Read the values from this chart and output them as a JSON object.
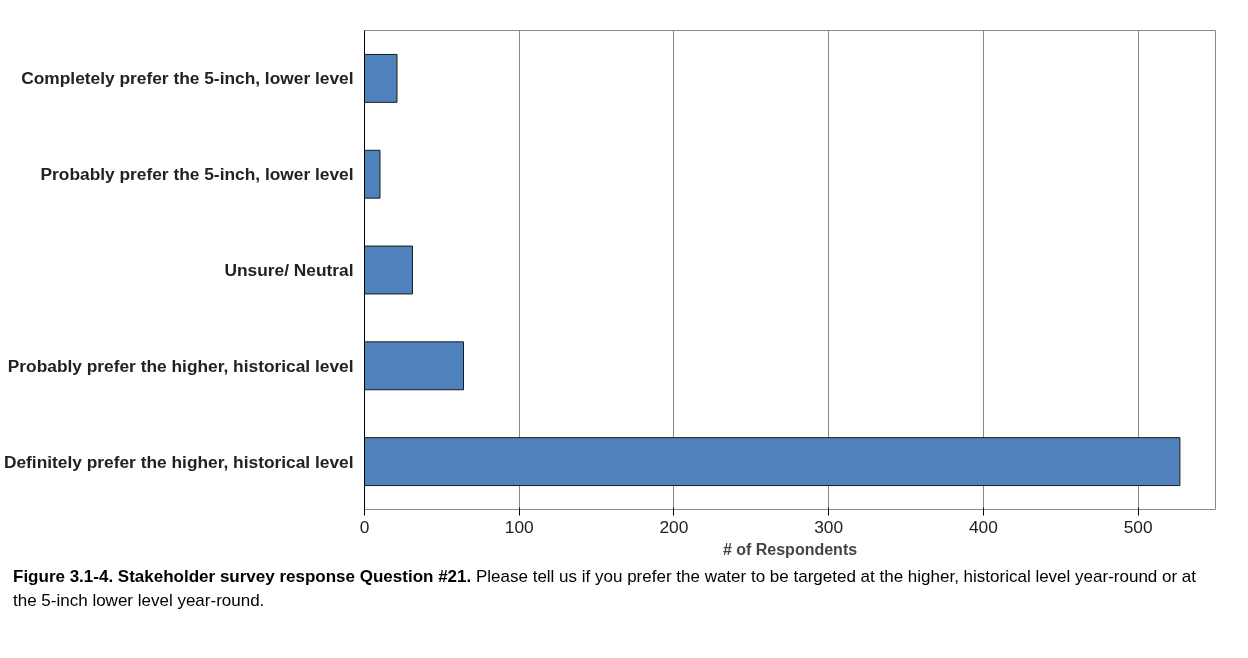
{
  "chart_data": {
    "type": "bar",
    "orientation": "horizontal",
    "xlabel": "# of Respondents",
    "categories": [
      "Completely prefer the 5-inch, lower level",
      "Probably prefer the 5-inch, lower level",
      "Unsure/ Neutral",
      "Probably prefer the higher, historical level",
      "Definitely prefer the higher, historical level"
    ],
    "values": [
      21,
      10,
      31,
      64,
      527
    ],
    "color": "#4f81bd",
    "xlim": [
      0,
      550
    ],
    "xticks": [
      0,
      100,
      200,
      300,
      400,
      500
    ],
    "grid": "x",
    "annotations": [
      "Figure 3.1-4.  Stakeholder survey response Question #21.",
      "Please tell us if you prefer the water to be targeted at the higher, historical level year-round or at the 5-inch lower level year-round."
    ]
  }
}
